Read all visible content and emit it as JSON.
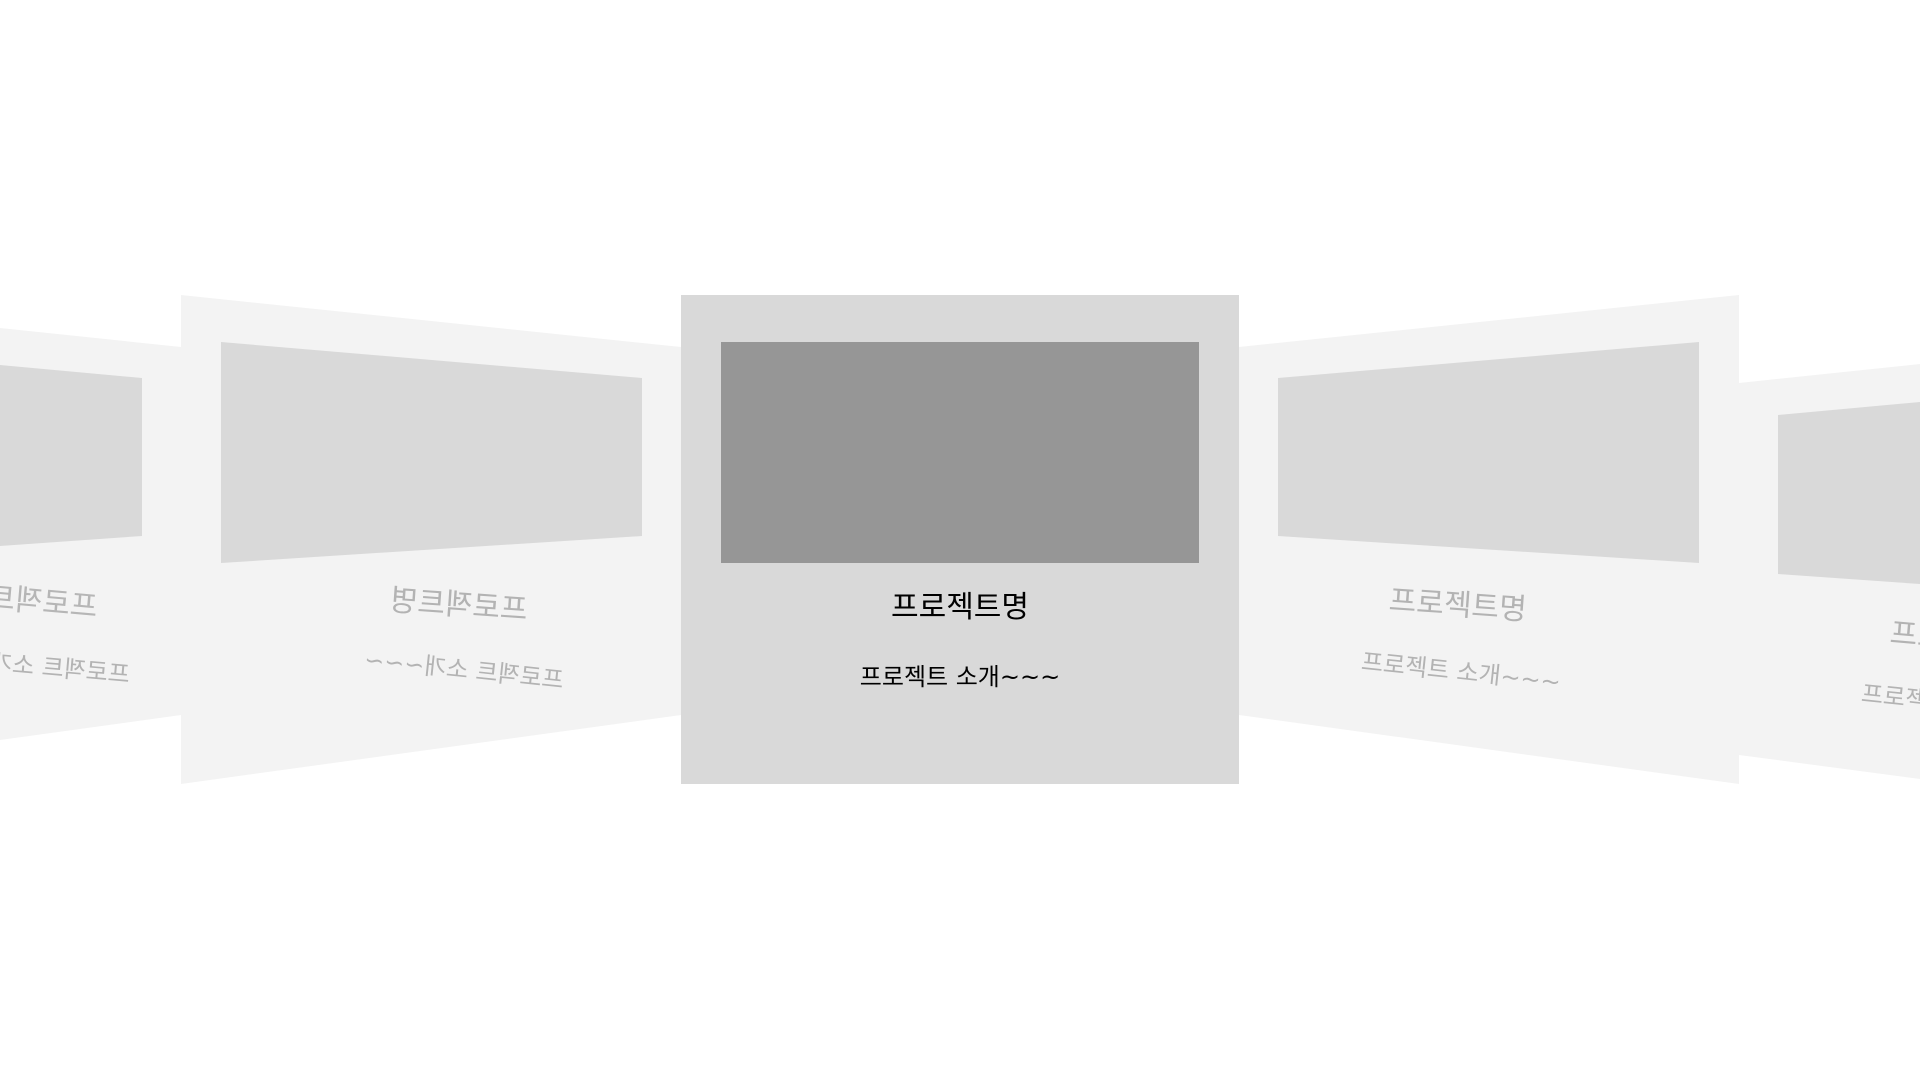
{
  "carousel": {
    "active_index": 2,
    "cards": [
      {
        "title": "프로젝트명",
        "description": "프로젝트 소개~~~"
      },
      {
        "title": "프로젝트명",
        "description": "프로젝트 소개~~~"
      },
      {
        "title": "프로젝트명",
        "description": "프로젝트 소개~~~"
      },
      {
        "title": "프로젝트명",
        "description": "프로젝트 소개~~~"
      },
      {
        "title": "프로젝트명",
        "description": "프로젝트 소개~~~"
      }
    ]
  },
  "colors": {
    "background": "#ffffff",
    "active_card": "#d9d9d9",
    "active_thumb": "#969696",
    "side_card": "#f3f3f3",
    "side_thumb": "#d9d9d9",
    "side_text": "#b3b3b3",
    "active_text": "#000000"
  }
}
